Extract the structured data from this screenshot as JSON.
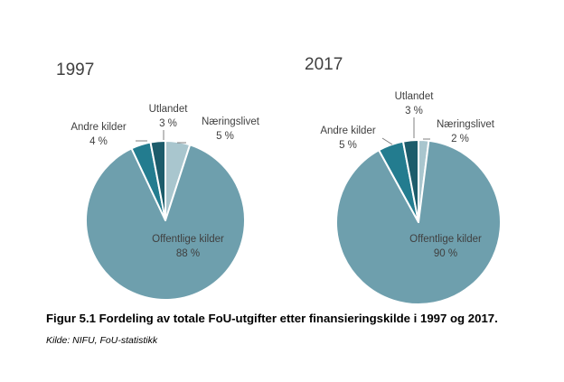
{
  "chart_data": [
    {
      "type": "pie",
      "title": "1997",
      "slices": [
        {
          "label": "Næringslivet",
          "value": 5,
          "value_label": "5 %",
          "color": "#A9C6CE"
        },
        {
          "label": "Offentlige kilder",
          "value": 88,
          "value_label": "88 %",
          "color": "#6E9FAD"
        },
        {
          "label": "Andre kilder",
          "value": 4,
          "value_label": "4 %",
          "color": "#237C8F"
        },
        {
          "label": "Utlandet",
          "value": 3,
          "value_label": "3 %",
          "color": "#1C5C6B"
        }
      ]
    },
    {
      "type": "pie",
      "title": "2017",
      "slices": [
        {
          "label": "Næringslivet",
          "value": 2,
          "value_label": "2 %",
          "color": "#A9C6CE"
        },
        {
          "label": "Offentlige kilder",
          "value": 90,
          "value_label": "90 %",
          "color": "#6E9FAD"
        },
        {
          "label": "Andre kilder",
          "value": 5,
          "value_label": "5 %",
          "color": "#237C8F"
        },
        {
          "label": "Utlandet",
          "value": 3,
          "value_label": "3 %",
          "color": "#1C5C6B"
        }
      ]
    }
  ],
  "caption": "Figur 5.1 Fordeling av totale FoU-utgifter etter finansieringskilde i 1997 og 2017.",
  "source": "Kilde: NIFU, FoU-statistikk"
}
